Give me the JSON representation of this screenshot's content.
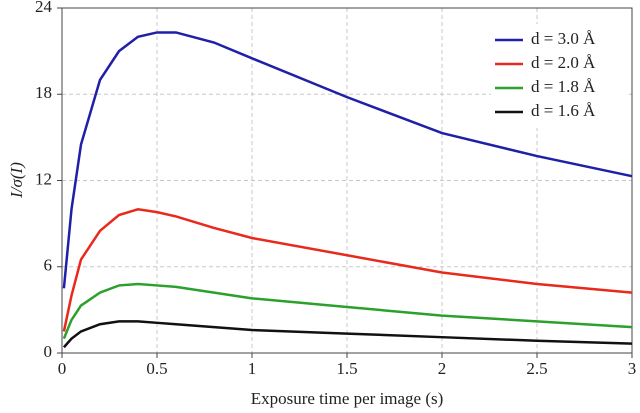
{
  "chart_data": {
    "type": "line",
    "xlabel": "Exposure time per image (s)",
    "ylabel": "I/σ(I)",
    "x": [
      0.01,
      0.05,
      0.1,
      0.2,
      0.3,
      0.4,
      0.5,
      0.6,
      0.8,
      1.0,
      1.5,
      2.0,
      2.5,
      3.0
    ],
    "series": [
      {
        "name": "d = 3.0 Å",
        "color": "#1f1fa8",
        "values": [
          4.5,
          10,
          14.5,
          19,
          21,
          22,
          22.3,
          22.3,
          21.6,
          20.5,
          17.8,
          15.3,
          13.7,
          12.3
        ]
      },
      {
        "name": "d = 2.0 Å",
        "color": "#e8291c",
        "values": [
          1.5,
          4,
          6.5,
          8.5,
          9.6,
          10,
          9.8,
          9.5,
          8.7,
          8.0,
          6.8,
          5.6,
          4.8,
          4.2
        ]
      },
      {
        "name": "d = 1.8 Å",
        "color": "#2ca02c",
        "values": [
          1.0,
          2.3,
          3.3,
          4.2,
          4.7,
          4.8,
          4.7,
          4.6,
          4.2,
          3.8,
          3.2,
          2.6,
          2.2,
          1.8
        ]
      },
      {
        "name": "d = 1.6 Å",
        "color": "#111111",
        "values": [
          0.4,
          1.0,
          1.5,
          2.0,
          2.2,
          2.2,
          2.1,
          2.0,
          1.8,
          1.6,
          1.35,
          1.1,
          0.85,
          0.65
        ]
      }
    ],
    "xlim": [
      0,
      3
    ],
    "xticks": [
      0,
      0.5,
      1,
      1.5,
      2,
      2.5,
      3
    ],
    "ylim": [
      0,
      24
    ],
    "yticks": [
      0,
      6,
      12,
      18,
      24
    ],
    "grid": true,
    "legend": "upper right"
  }
}
